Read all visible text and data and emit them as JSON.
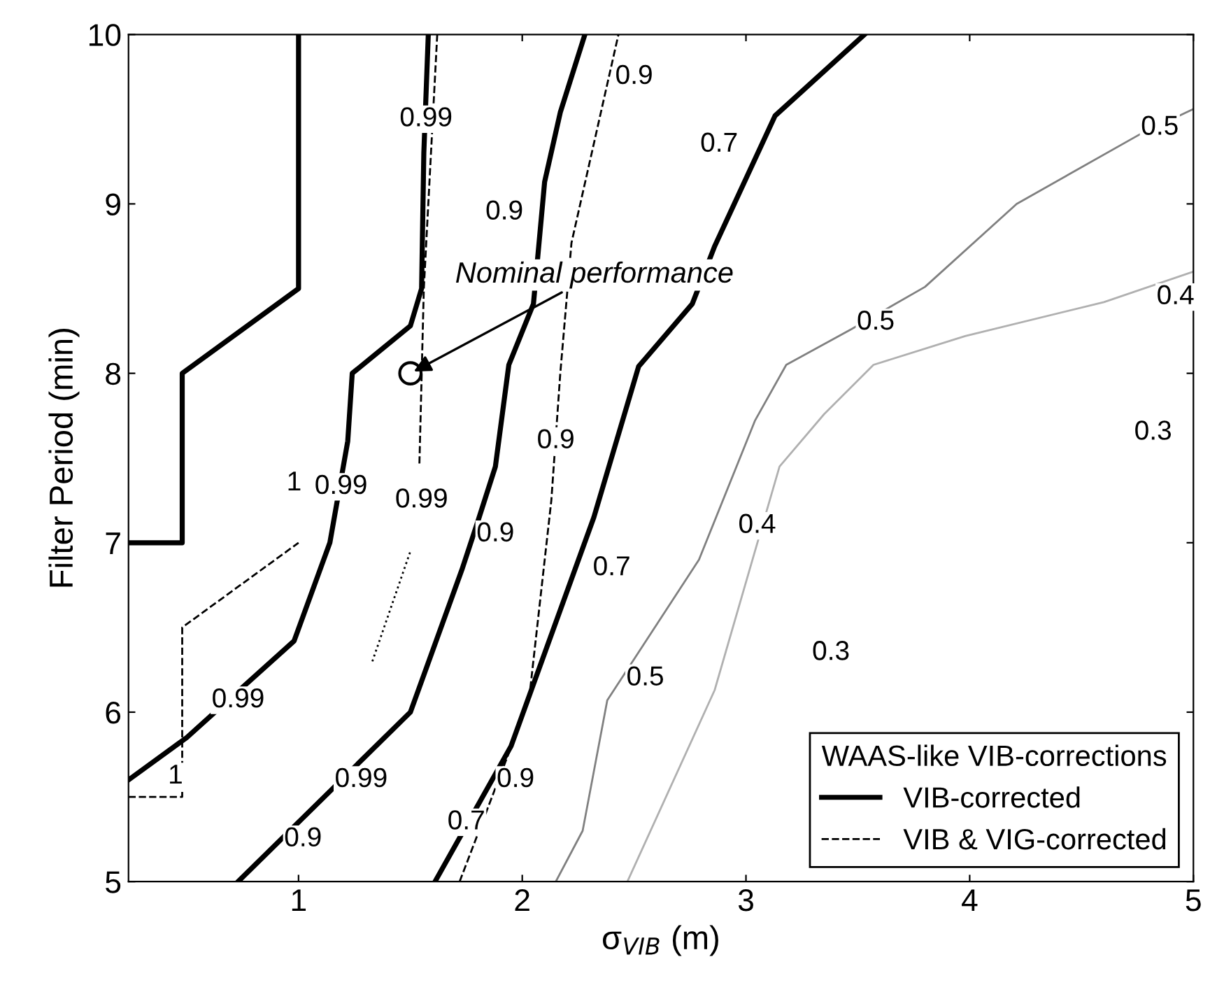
{
  "chart_data": {
    "type": "line",
    "xlabel": "σ$_{VIB}$ (m)",
    "ylabel": "Filter Period (min)",
    "legend_title": "WAAS-like VIB-corrections",
    "xlim": [
      0.24,
      5
    ],
    "ylim": [
      5,
      10
    ],
    "xticks": [
      1,
      2,
      3,
      4,
      5
    ],
    "yticks": [
      5,
      6,
      7,
      8,
      9,
      10
    ],
    "legend": "bottom right",
    "grid": false,
    "series": [
      {
        "name": "VIB-corrected",
        "color": "#000000",
        "line_style": "solid",
        "x": [
          0.24,
          0.48,
          0.48,
          1.0,
          1.0
        ],
        "values": [
          7.0,
          7.0,
          8.0,
          8.5,
          10
        ]
      },
      {
        "color": "#000000",
        "line_style": "solid",
        "x": [
          0.24,
          0.5,
          0.98,
          1.14,
          1.22,
          1.24,
          1.5,
          1.55,
          1.56,
          1.58
        ],
        "values": [
          5.6,
          5.85,
          6.42,
          7.0,
          7.6,
          8.0,
          8.28,
          8.5,
          9.3,
          10
        ]
      },
      {
        "color": "#000000",
        "line_style": "solid",
        "x": [
          0.73,
          1.5,
          1.73,
          1.8,
          1.88,
          1.94,
          2.05,
          2.1,
          2.17,
          2.28
        ],
        "values": [
          5.0,
          6.0,
          6.84,
          7.12,
          7.45,
          8.05,
          8.41,
          9.13,
          9.54,
          10
        ]
      },
      {
        "color": "#000000",
        "line_style": "solid",
        "x": [
          1.61,
          1.95,
          2.32,
          2.52,
          2.76,
          2.86,
          3.13,
          3.53
        ],
        "values": [
          5.0,
          5.8,
          7.15,
          8.04,
          8.41,
          8.75,
          9.52,
          10
        ]
      },
      {
        "name": "VIB & VIG-corrected",
        "color": "#000000",
        "line_style": "dashed",
        "x": [
          1.62,
          1.56,
          1.54
        ],
        "values": [
          10,
          8.5,
          7.45
        ]
      },
      {
        "color": "#000000",
        "line_style": "dotted",
        "x": [
          1.33,
          1.5
        ],
        "values": [
          6.3,
          6.95
        ]
      },
      {
        "color": "#000000",
        "line_style": "dashed",
        "x": [
          0.24,
          0.48,
          0.48,
          1.0
        ],
        "values": [
          5.5,
          5.5,
          6.5,
          7.0
        ]
      },
      {
        "color": "#000000",
        "line_style": "dashed",
        "x": [
          1.72,
          2.03,
          2.13,
          2.17,
          2.22,
          2.43
        ],
        "values": [
          5.0,
          6.07,
          7.25,
          8.0,
          8.77,
          10
        ]
      },
      {
        "color": "#808080",
        "line_style": "solid",
        "x": [
          2.15,
          2.27,
          2.38,
          2.79,
          3.04,
          3.18,
          3.47,
          3.8,
          4.21,
          4.76,
          5.0
        ],
        "values": [
          5.0,
          5.3,
          6.07,
          6.9,
          7.72,
          8.05,
          8.26,
          8.51,
          9.0,
          9.41,
          9.56
        ]
      },
      {
        "color": "#b0b0b0",
        "line_style": "solid",
        "x": [
          2.47,
          2.86,
          3.15,
          3.35,
          3.57,
          3.98,
          4.6,
          5.0
        ],
        "values": [
          5.0,
          6.13,
          7.45,
          7.76,
          8.05,
          8.22,
          8.42,
          8.6
        ]
      },
      {
        "type": "scatter",
        "color": "#000000",
        "marker": "circle",
        "x": [
          1.5
        ],
        "values": [
          8.0
        ]
      }
    ],
    "annotations": [
      {
        "text": "Nominal performance",
        "x": 1.5,
        "y": 8.0
      },
      {
        "text": "1",
        "x": 0.98,
        "y": 7.35
      },
      {
        "text": "1",
        "x": 0.45,
        "y": 5.62
      },
      {
        "text": "0.99",
        "x": 1.19,
        "y": 7.33
      },
      {
        "text": "0.99",
        "x": 1.57,
        "y": 9.5
      },
      {
        "text": "0.99",
        "x": 1.55,
        "y": 7.25
      },
      {
        "text": "0.99",
        "x": 0.73,
        "y": 6.07
      },
      {
        "text": "0.99",
        "x": 1.28,
        "y": 5.6
      },
      {
        "text": "0.9",
        "x": 1.92,
        "y": 8.95
      },
      {
        "text": "0.9",
        "x": 2.5,
        "y": 9.75
      },
      {
        "text": "0.9",
        "x": 2.15,
        "y": 7.6
      },
      {
        "text": "0.9",
        "x": 1.88,
        "y": 7.05
      },
      {
        "text": "0.9",
        "x": 1.02,
        "y": 5.25
      },
      {
        "text": "0.9",
        "x": 1.97,
        "y": 5.6
      },
      {
        "text": "0.7",
        "x": 2.88,
        "y": 9.35
      },
      {
        "text": "0.7",
        "x": 2.4,
        "y": 6.85
      },
      {
        "text": "0.7",
        "x": 1.75,
        "y": 5.35
      },
      {
        "text": "0.5",
        "x": 3.58,
        "y": 8.3
      },
      {
        "text": "0.5",
        "x": 4.85,
        "y": 9.45
      },
      {
        "text": "0.5",
        "x": 2.55,
        "y": 6.2
      },
      {
        "text": "0.4",
        "x": 3.05,
        "y": 7.1
      },
      {
        "text": "0.4",
        "x": 4.92,
        "y": 8.45
      },
      {
        "text": "0.3",
        "x": 4.82,
        "y": 7.65
      },
      {
        "text": "0.3",
        "x": 3.38,
        "y": 6.35
      }
    ]
  }
}
